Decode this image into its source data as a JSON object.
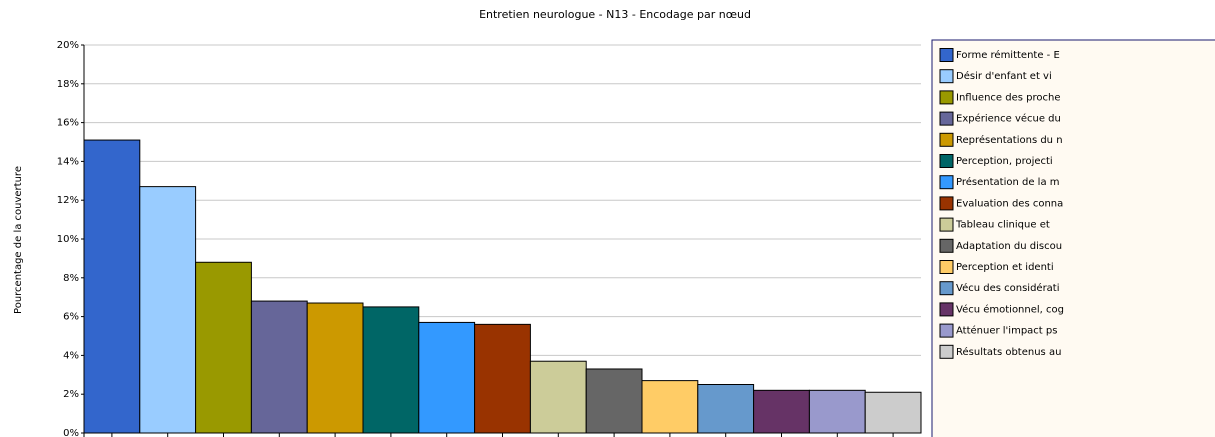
{
  "chart_data": {
    "type": "bar",
    "title": "Entretien neurologue - N13 - Encodage par nœud",
    "y_label": "Pourcentage de la couverture",
    "categories": [
      "Forme rémittente - E",
      "Désir d'enfant et vi",
      "Influence des proche",
      "Expérience vécue du",
      "Représentations du n",
      "Perception, projecti",
      "Présentation de la m",
      "Evaluation des conna",
      "Tableau clinique et",
      "Adaptation du discou",
      "Perception et identi",
      "Vécu des considérati",
      "Vécu émotionnel, cog",
      "Atténuer l'impact ps",
      "Résultats obtenus au"
    ],
    "values": [
      15.1,
      12.7,
      8.8,
      6.8,
      6.7,
      6.5,
      5.7,
      5.6,
      3.7,
      3.3,
      2.7,
      2.5,
      2.2,
      2.2,
      2.1
    ],
    "colors": [
      "#3366cc",
      "#99ccff",
      "#999900",
      "#666699",
      "#cc9900",
      "#006666",
      "#3399ff",
      "#993300",
      "#cccc99",
      "#666666",
      "#ffcc66",
      "#6699cc",
      "#663366",
      "#9999cc",
      "#cccccc"
    ],
    "ylim": [
      0,
      20
    ],
    "yticks": [
      {
        "value": 0,
        "label": "0%"
      },
      {
        "value": 2,
        "label": "2%"
      },
      {
        "value": 4,
        "label": "4%"
      },
      {
        "value": 6,
        "label": "6%"
      },
      {
        "value": 8,
        "label": "8%"
      },
      {
        "value": 10,
        "label": "10%"
      },
      {
        "value": 12,
        "label": "12%"
      },
      {
        "value": 14,
        "label": "14%"
      },
      {
        "value": 16,
        "label": "16%"
      },
      {
        "value": 18,
        "label": "18%"
      },
      {
        "value": 20,
        "label": "20%"
      }
    ],
    "grid": true
  }
}
